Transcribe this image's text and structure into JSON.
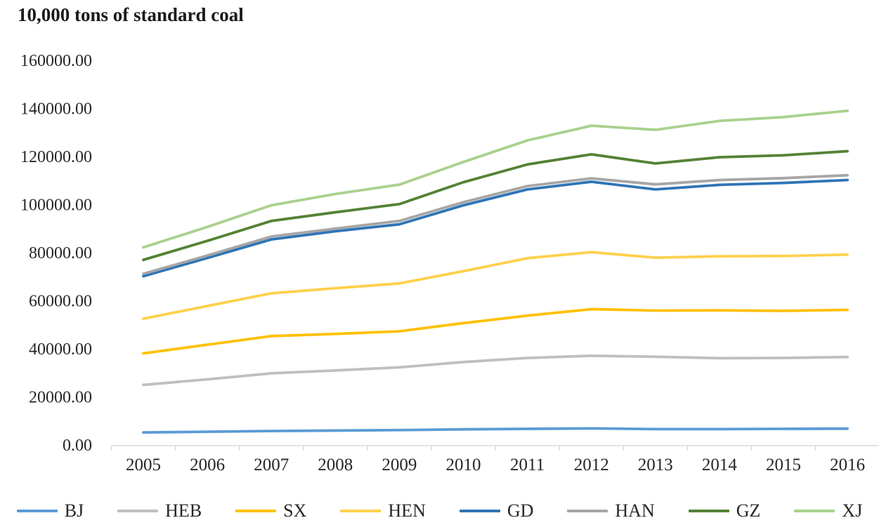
{
  "title": "10,000 tons of standard coal",
  "chart_data": {
    "type": "line",
    "title": "10,000 tons of standard coal",
    "xlabel": "",
    "ylabel": "",
    "x": [
      2005,
      2006,
      2007,
      2008,
      2009,
      2010,
      2011,
      2012,
      2013,
      2014,
      2015,
      2016
    ],
    "ylim": [
      0,
      160000
    ],
    "ytick_step": 20000,
    "ytick_labels": [
      "0.00",
      "20000.00",
      "40000.00",
      "60000.00",
      "80000.00",
      "100000.00",
      "120000.00",
      "140000.00",
      "160000.00"
    ],
    "grid": false,
    "legend_position": "bottom",
    "axis_color": "#d9d9d9",
    "series": [
      {
        "name": "BJ",
        "color": "#5B9BD5",
        "values": [
          5500,
          5800,
          6100,
          6300,
          6500,
          6800,
          7000,
          7200,
          6900,
          6900,
          7000,
          7100
        ]
      },
      {
        "name": "HEB",
        "color": "#BFBFBF",
        "values": [
          25300,
          27600,
          30100,
          31300,
          32600,
          34800,
          36500,
          37400,
          37000,
          36400,
          36500,
          36900
        ]
      },
      {
        "name": "SX",
        "color": "#FFC000",
        "values": [
          38400,
          42000,
          45600,
          46500,
          47600,
          51000,
          54100,
          56800,
          56200,
          56300,
          56100,
          56500
        ]
      },
      {
        "name": "HEN",
        "color": "#FFD04D",
        "values": [
          52800,
          58100,
          63400,
          65500,
          67500,
          72600,
          78000,
          80500,
          78200,
          78800,
          78900,
          79500
        ]
      },
      {
        "name": "GD",
        "color": "#2E75B6",
        "values": [
          70500,
          78100,
          85800,
          89200,
          92100,
          100000,
          106600,
          109800,
          106600,
          108500,
          109300,
          110500
        ]
      },
      {
        "name": "HAN",
        "color": "#A6A6A6",
        "values": [
          71500,
          79100,
          87000,
          90300,
          93500,
          101300,
          108000,
          111200,
          108700,
          110500,
          111300,
          112500
        ]
      },
      {
        "name": "GZ",
        "color": "#548235",
        "values": [
          77300,
          85200,
          93500,
          97100,
          100500,
          109600,
          117000,
          121200,
          117400,
          120000,
          120800,
          122500
        ]
      },
      {
        "name": "XJ",
        "color": "#A9D18E",
        "values": [
          82500,
          91000,
          100000,
          104700,
          108600,
          118000,
          127000,
          133100,
          131400,
          135100,
          136700,
          139300
        ]
      }
    ]
  }
}
